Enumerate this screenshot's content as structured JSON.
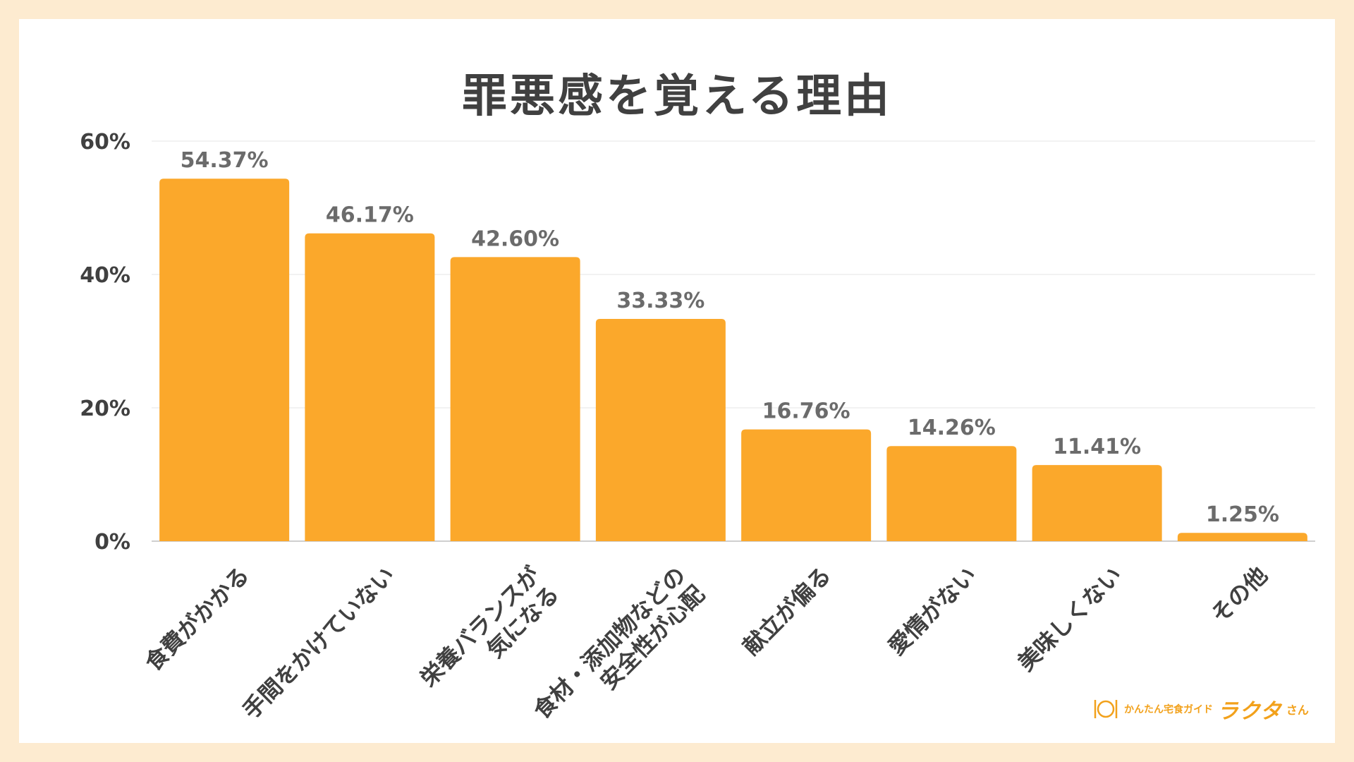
{
  "chart_data": {
    "type": "bar",
    "title": "罪悪感を覚える理由",
    "categories": [
      [
        "食費がかかる"
      ],
      [
        "手間をかけていない"
      ],
      [
        "栄養バランスが",
        "気になる"
      ],
      [
        "食材・添加物などの",
        "安全性が心配"
      ],
      [
        "献立が偏る"
      ],
      [
        "愛情がない"
      ],
      [
        "美味しくない"
      ],
      [
        "その他"
      ]
    ],
    "values": [
      54.37,
      46.17,
      42.6,
      33.33,
      16.76,
      14.26,
      11.41,
      1.25
    ],
    "value_labels": [
      "54.37%",
      "46.17%",
      "42.60%",
      "33.33%",
      "16.76%",
      "14.26%",
      "11.41%",
      "1.25%"
    ],
    "ylim": [
      0,
      60
    ],
    "yticks": [
      "0%",
      "20%",
      "40%",
      "60%"
    ],
    "ytick_values": [
      0,
      20,
      40,
      60
    ],
    "grid": true,
    "bar_color": "#FBA82B"
  },
  "logo": {
    "small_text": "かんたん宅食ガイド",
    "brand": "ラクタ",
    "suffix": "さん",
    "color": "#F2A11B"
  }
}
